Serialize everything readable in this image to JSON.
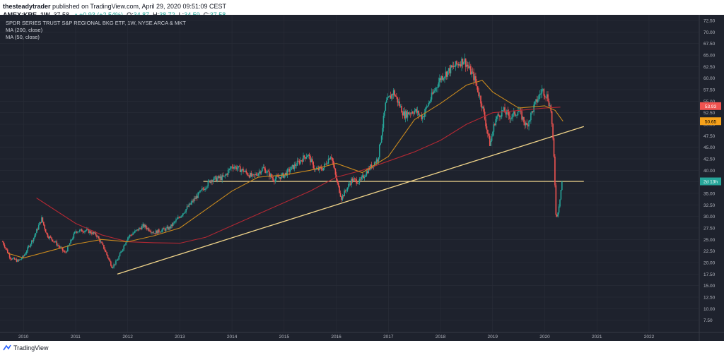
{
  "header": {
    "publisher": "thesteadytrader",
    "published_text": " published on TradingView.com, April 29, 2020 09:51:09 CEST",
    "symbol": "AMEX:KRE, 1W",
    "price": "37.58",
    "arrow": "▲",
    "change": "+0.93 (+2.54%)",
    "o_label": "O:",
    "o_val": "34.87",
    "h_label": "H:",
    "h_val": "38.72",
    "l_label": "L:",
    "l_val": "34.59",
    "c_label": "C:",
    "c_val": "37.58"
  },
  "legend": {
    "title": "SPDR SERIES TRUST S&P REGIONAL BKG ETF, 1W, NYSE ARCA & MKT",
    "ma200": "MA (200, close)",
    "ma50": "MA (50, close)"
  },
  "footer": {
    "brand": "TradingView"
  },
  "colors": {
    "background": "#1e222d",
    "up": "#26a69a",
    "down": "#ef5350",
    "ma200": "#b22833",
    "ma50": "#c8891e",
    "trendline": "#f0d48a",
    "axis_text": "#b2b5be"
  },
  "chart_data": {
    "type": "candlestick",
    "x_unit": "year",
    "ylim": [
      5,
      72.5
    ],
    "y_ticks": [
      7.5,
      10,
      12.5,
      15,
      17.5,
      20,
      22.5,
      25,
      27.5,
      30,
      32.5,
      35,
      37.5,
      40,
      42.5,
      45,
      47.5,
      50,
      52.5,
      55,
      57.5,
      60,
      62.5,
      65,
      67.5,
      70,
      72.5
    ],
    "x_ticks": [
      "2010",
      "2011",
      "2012",
      "2013",
      "2014",
      "2015",
      "2016",
      "2017",
      "2018",
      "2019",
      "2020",
      "2021",
      "2022"
    ],
    "price_path": [
      [
        2009.6,
        24.5
      ],
      [
        2009.75,
        21.0
      ],
      [
        2009.9,
        20.3
      ],
      [
        2010.0,
        21.3
      ],
      [
        2010.2,
        25.5
      ],
      [
        2010.35,
        29.5
      ],
      [
        2010.45,
        26.0
      ],
      [
        2010.6,
        24.5
      ],
      [
        2010.8,
        22.0
      ],
      [
        2011.0,
        26.8
      ],
      [
        2011.2,
        27.0
      ],
      [
        2011.4,
        26.0
      ],
      [
        2011.55,
        23.0
      ],
      [
        2011.7,
        19.0
      ],
      [
        2011.8,
        20.5
      ],
      [
        2012.0,
        25.5
      ],
      [
        2012.3,
        28.0
      ],
      [
        2012.5,
        26.5
      ],
      [
        2012.8,
        27.5
      ],
      [
        2013.0,
        30.0
      ],
      [
        2013.3,
        34.0
      ],
      [
        2013.6,
        38.0
      ],
      [
        2013.85,
        38.5
      ],
      [
        2014.0,
        41.0
      ],
      [
        2014.2,
        40.0
      ],
      [
        2014.4,
        38.5
      ],
      [
        2014.6,
        40.5
      ],
      [
        2014.8,
        38.0
      ],
      [
        2015.0,
        39.0
      ],
      [
        2015.2,
        41.0
      ],
      [
        2015.45,
        43.5
      ],
      [
        2015.6,
        40.0
      ],
      [
        2015.75,
        40.5
      ],
      [
        2015.9,
        43.5
      ],
      [
        2016.0,
        38.0
      ],
      [
        2016.1,
        34.0
      ],
      [
        2016.3,
        38.0
      ],
      [
        2016.45,
        37.5
      ],
      [
        2016.6,
        40.0
      ],
      [
        2016.8,
        42.5
      ],
      [
        2016.95,
        54.5
      ],
      [
        2017.1,
        57.0
      ],
      [
        2017.3,
        52.0
      ],
      [
        2017.5,
        53.0
      ],
      [
        2017.65,
        51.5
      ],
      [
        2017.85,
        56.5
      ],
      [
        2018.0,
        60.0
      ],
      [
        2018.2,
        62.0
      ],
      [
        2018.45,
        64.0
      ],
      [
        2018.65,
        60.0
      ],
      [
        2018.8,
        54.0
      ],
      [
        2018.95,
        45.5
      ],
      [
        2019.05,
        51.0
      ],
      [
        2019.2,
        53.0
      ],
      [
        2019.35,
        51.5
      ],
      [
        2019.5,
        53.0
      ],
      [
        2019.65,
        49.5
      ],
      [
        2019.8,
        54.0
      ],
      [
        2019.95,
        57.5
      ],
      [
        2020.05,
        56.0
      ],
      [
        2020.12,
        53.0
      ],
      [
        2020.18,
        42.0
      ],
      [
        2020.22,
        29.0
      ],
      [
        2020.28,
        33.0
      ],
      [
        2020.33,
        37.58
      ]
    ],
    "ma200": [
      [
        2010.25,
        34.0
      ],
      [
        2011.0,
        28.5
      ],
      [
        2011.5,
        26.0
      ],
      [
        2012.0,
        24.5
      ],
      [
        2012.5,
        24.3
      ],
      [
        2013.0,
        24.2
      ],
      [
        2013.5,
        25.5
      ],
      [
        2014.0,
        28.0
      ],
      [
        2014.5,
        30.5
      ],
      [
        2015.0,
        33.0
      ],
      [
        2015.5,
        35.5
      ],
      [
        2016.0,
        38.5
      ],
      [
        2016.5,
        40.0
      ],
      [
        2017.0,
        42.0
      ],
      [
        2017.5,
        44.0
      ],
      [
        2018.0,
        46.5
      ],
      [
        2018.5,
        50.0
      ],
      [
        2019.0,
        52.5
      ],
      [
        2019.5,
        53.0
      ],
      [
        2020.0,
        53.5
      ],
      [
        2020.3,
        53.7
      ]
    ],
    "ma50": [
      [
        2009.7,
        22.0
      ],
      [
        2010.0,
        21.0
      ],
      [
        2010.5,
        22.5
      ],
      [
        2011.0,
        24.0
      ],
      [
        2011.5,
        25.0
      ],
      [
        2012.0,
        24.5
      ],
      [
        2012.5,
        25.8
      ],
      [
        2013.0,
        27.5
      ],
      [
        2013.5,
        31.5
      ],
      [
        2014.0,
        35.5
      ],
      [
        2014.5,
        38.5
      ],
      [
        2015.0,
        39.0
      ],
      [
        2015.5,
        40.0
      ],
      [
        2016.0,
        41.5
      ],
      [
        2016.5,
        39.5
      ],
      [
        2017.0,
        43.0
      ],
      [
        2017.5,
        51.0
      ],
      [
        2018.0,
        54.5
      ],
      [
        2018.5,
        58.5
      ],
      [
        2018.8,
        59.5
      ],
      [
        2019.0,
        57.0
      ],
      [
        2019.5,
        53.5
      ],
      [
        2020.0,
        54.0
      ],
      [
        2020.2,
        53.0
      ],
      [
        2020.35,
        50.65
      ]
    ],
    "trendlines": [
      {
        "from": [
          2011.8,
          17.5
        ],
        "to": [
          2020.75,
          49.5
        ]
      },
      {
        "from": [
          2013.45,
          37.6
        ],
        "to": [
          2020.75,
          37.6
        ]
      }
    ],
    "price_labels": [
      {
        "text": "53.93",
        "value": 53.93,
        "color": "#ef5350",
        "text_color": "#ffffff"
      },
      {
        "text": "50.65",
        "value": 50.65,
        "color": "#f7a21b",
        "text_color": "#000000"
      },
      {
        "text": "2d 13h",
        "value": 37.6,
        "color": "#26a69a",
        "text_color": "#ffffff"
      }
    ]
  }
}
